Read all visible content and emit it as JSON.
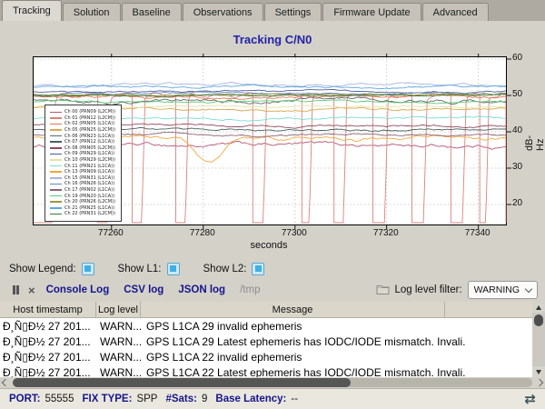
{
  "tabs": [
    {
      "label": "Tracking",
      "active": true
    },
    {
      "label": "Solution",
      "active": false
    },
    {
      "label": "Baseline",
      "active": false
    },
    {
      "label": "Observations",
      "active": false
    },
    {
      "label": "Settings",
      "active": false
    },
    {
      "label": "Firmware Update",
      "active": false
    },
    {
      "label": "Advanced",
      "active": false
    }
  ],
  "chart_data": {
    "type": "line",
    "title": "Tracking C/N0",
    "xlabel": "seconds",
    "ylabel": "dB-Hz",
    "xticks": [
      77260,
      77280,
      77300,
      77320,
      77340
    ],
    "yticks": [
      20,
      30,
      40,
      50,
      60
    ],
    "xrange": [
      77243,
      77346
    ],
    "yrange": [
      14.5,
      60.5
    ],
    "grid": true,
    "legend_position": "top-left",
    "series": [
      {
        "name": "Ch 00 (PRN09 (L2CM))",
        "color": "#b25575",
        "base": 36.2,
        "amp": 1.6
      },
      {
        "name": "Ch 01 (PRN12 (L2CM))",
        "color": "#d9837d",
        "base": 50.0,
        "amp": 0.5,
        "drop_floor": 15.0,
        "dropouts": [
          [
            77247,
            77257
          ],
          [
            77259,
            77264.5
          ],
          [
            77266.5,
            77274
          ],
          [
            77276,
            77290.8
          ],
          [
            77293,
            77301.5
          ],
          [
            77303,
            77308.5
          ],
          [
            77310.5,
            77317
          ],
          [
            77319.5,
            77325.5
          ],
          [
            77328,
            77334
          ],
          [
            77336.5,
            77340.3
          ],
          [
            77341.5,
            77346
          ]
        ]
      },
      {
        "name": "Ch 02 (PRN05 (L1CA))",
        "color": "#e07a50",
        "base": 49.6,
        "amp": 1.0
      },
      {
        "name": "Ch 05 (PRN25 (L2CM))",
        "color": "#d8a84e",
        "base": 46.4,
        "amp": 0.9
      },
      {
        "name": "Ch 06 (PRN23 (L1CA))",
        "color": "#5e6a6a",
        "base": 48.6,
        "amp": 1.6
      },
      {
        "name": "Ch 07 (PRN12 (L1CA))",
        "color": "#49605e",
        "base": 40.6,
        "amp": 0.8
      },
      {
        "name": "Ch 08 (PRN05 (L2CM))",
        "color": "#8d4a5e",
        "base": 41.6,
        "amp": 0.8
      },
      {
        "name": "Ch 09 (PRN29 (L1CA))",
        "color": "#4b5d9e",
        "base": 51.0,
        "amp": 0.7
      },
      {
        "name": "Ch 10 (PRN29 (L2CM))",
        "color": "#e6e2a6",
        "base": 46.9,
        "amp": 0.6
      },
      {
        "name": "Ch 11 (PRN21 (L1CA))",
        "color": "#79dcd4",
        "base": 43.6,
        "amp": 0.8
      },
      {
        "name": "Ch 13 (PRN09 (L1CA))",
        "color": "#f0a840",
        "base": 38.0,
        "amp": 1.4,
        "dip": {
          "at": 77281,
          "width": 14,
          "depth": 6.5
        }
      },
      {
        "name": "Ch 15 (PRN31 (L1CA))",
        "color": "#a9b4e2",
        "base": 53.0,
        "amp": 0.9
      },
      {
        "name": "Ch 16 (PRN26 (L1CA))",
        "color": "#6d86c0",
        "base": 50.4,
        "amp": 0.7
      },
      {
        "name": "Ch 17 (PRN02 (L1CA))",
        "color": "#8a6472",
        "base": 39.3,
        "amp": 0.8
      },
      {
        "name": "Ch 19 (PRN20 (L1CA))",
        "color": "#5fc878",
        "base": 48.2,
        "amp": 0.7
      },
      {
        "name": "Ch 20 (PRN26 (L2CM))",
        "color": "#98983e",
        "base": 50.2,
        "amp": 0.6
      },
      {
        "name": "Ch 21 (PRN25 (L1CA))",
        "color": "#5fa8dc",
        "base": 52.4,
        "amp": 0.8
      },
      {
        "name": "Ch 22 (PRN31 (L2CM))",
        "color": "#3e7a42",
        "base": 49.9,
        "amp": 0.5
      }
    ]
  },
  "controls": {
    "show_legend": {
      "label": "Show Legend:",
      "checked": true
    },
    "show_l1": {
      "label": "Show L1:",
      "checked": true
    },
    "show_l2": {
      "label": "Show L2:",
      "checked": true
    }
  },
  "console_bar": {
    "console_log_label": "Console Log",
    "csv_log_label": "CSV log",
    "json_log_label": "JSON log",
    "path": "/tmp",
    "filter_label": "Log level filter:",
    "filter_value": "WARNING"
  },
  "log_table": {
    "columns": [
      "Host timestamp",
      "Log level",
      "Message"
    ],
    "rows": [
      {
        "timestamp": "Ð¸Ñ▯Ð½ 27 201...",
        "level": "WARN...",
        "message": "GPS L1CA 29 invalid ephemeris"
      },
      {
        "timestamp": "Ð¸Ñ▯Ð½ 27 201...",
        "level": "WARN...",
        "message": "GPS L1CA 29 Latest ephemeris has IODC/IODE mismatch. Invali."
      },
      {
        "timestamp": "Ð¸Ñ▯Ð½ 27 201...",
        "level": "WARN...",
        "message": "GPS L1CA 22 invalid ephemeris"
      },
      {
        "timestamp": "Ð¸Ñ▯Ð½ 27 201...",
        "level": "WARN...",
        "message": "GPS L1CA 22 Latest ephemeris has IODC/IODE mismatch. Invali."
      }
    ]
  },
  "status_bar": {
    "items": [
      {
        "label": "PORT:",
        "value": "55555"
      },
      {
        "label": "FIX TYPE:",
        "value": "SPP"
      },
      {
        "label": "#Sats:",
        "value": "9"
      },
      {
        "label": "Base Latency:",
        "value": "--"
      }
    ],
    "refresh_icon": "⇄"
  },
  "colors": {
    "accent_navy": "#15158c",
    "checkbox_blue": "#3fb0e6",
    "title_blue": "#2323a8"
  }
}
